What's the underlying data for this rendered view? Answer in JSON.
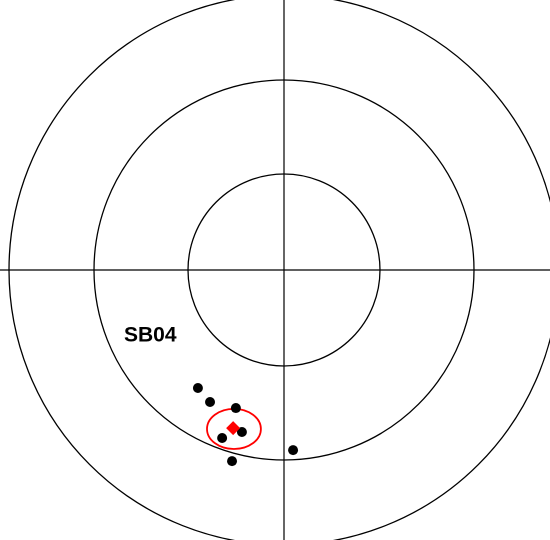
{
  "chart_data": {
    "type": "scatter",
    "label": "SB04",
    "xlim": [
      -1,
      1
    ],
    "ylim": [
      -1,
      1
    ],
    "series": [
      {
        "color": "#000000",
        "marker": "circle",
        "x": [
          -0.313,
          -0.269,
          -0.175,
          -0.225,
          -0.153,
          -0.189,
          0.033
        ],
        "y": [
          -0.429,
          -0.48,
          -0.502,
          -0.611,
          -0.589,
          -0.695,
          -0.655
        ]
      },
      {
        "color": "#ff0000",
        "marker": "diamond",
        "x": [
          -0.185
        ],
        "y": [
          -0.575
        ]
      }
    ],
    "ellipse": {
      "x": -0.182,
      "y": -0.578,
      "rx": 0.098,
      "ry": 0.073,
      "color": "#ff0000"
    }
  }
}
